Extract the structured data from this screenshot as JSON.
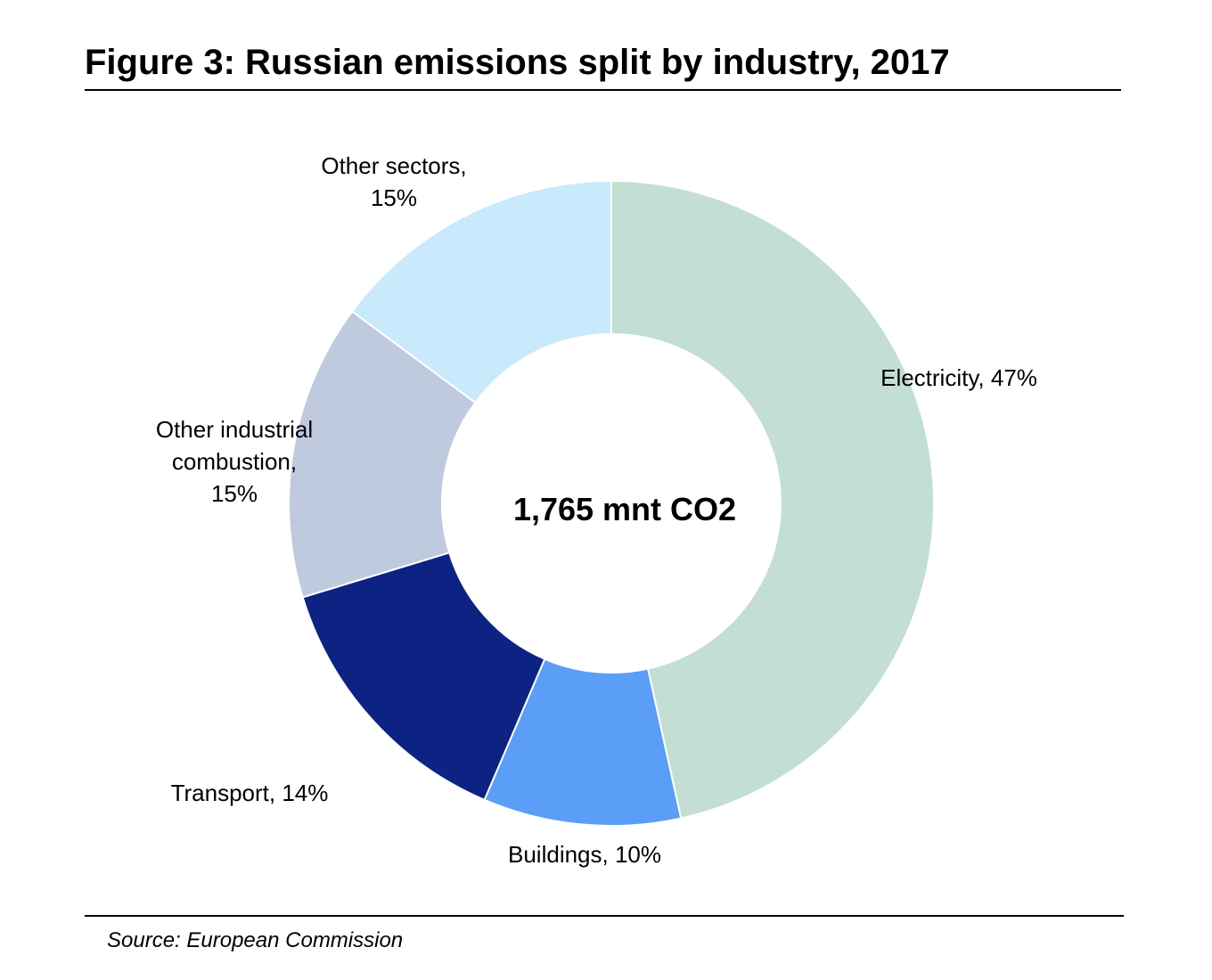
{
  "title": "Figure 3: Russian emissions split by industry, 2017",
  "source": "Source: European Commission",
  "chart_data": {
    "type": "pie",
    "variant": "donut",
    "center_label": "1,765 mnt CO2",
    "total": 1765,
    "units": "mnt CO2",
    "categories": [
      "Electricity",
      "Buildings",
      "Transport",
      "Other industrial combustion",
      "Other sectors"
    ],
    "values": [
      47,
      10,
      14,
      15,
      15
    ],
    "data_labels": [
      "Electricity, 47%",
      "Buildings, 10%",
      "Transport,  14%",
      "Other industrial\ncombustion,\n15%",
      "Other sectors,\n15%"
    ],
    "colors": [
      "#c3ded2",
      "#5b9ef8",
      "#0c2383",
      "#c0cadf",
      "#c9e9fc"
    ],
    "start": "12 o'clock",
    "direction": "clockwise",
    "legend": "none"
  }
}
